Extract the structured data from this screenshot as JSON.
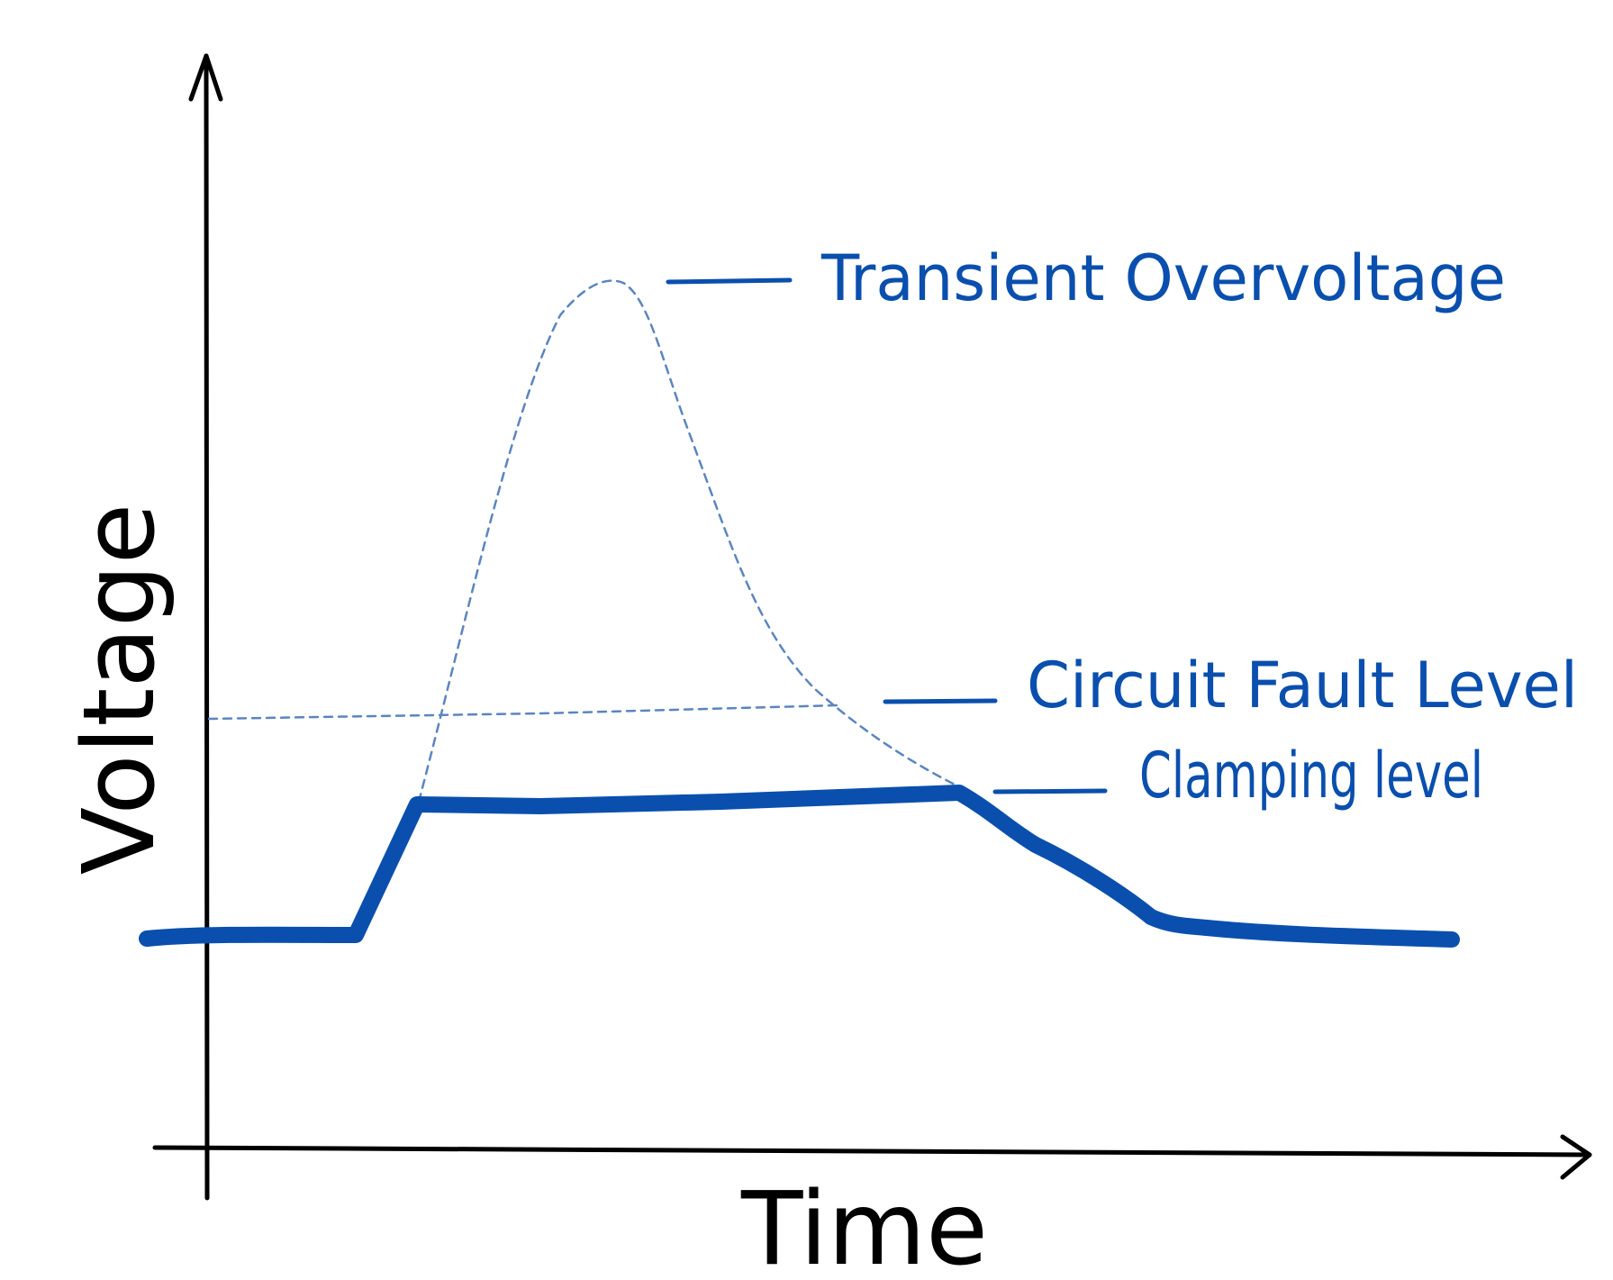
{
  "axes": {
    "y_label": "Voltage",
    "x_label": "Time"
  },
  "labels": {
    "transient": "Transient Overvoltage",
    "fault": "Circuit Fault Level",
    "clamping": "Clamping level"
  },
  "colors": {
    "ink": "#000000",
    "accent": "#0a4fae",
    "dashed": "#5b85bf"
  }
}
